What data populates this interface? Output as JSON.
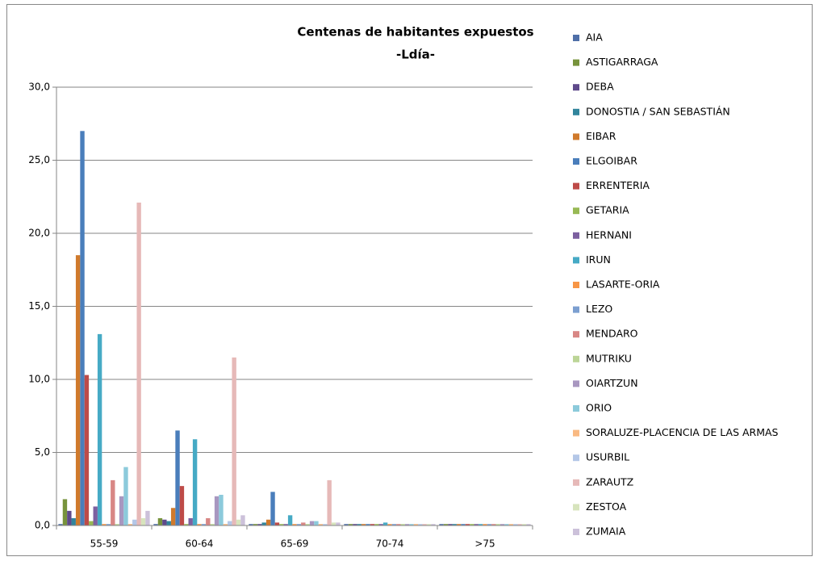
{
  "chart_data": {
    "type": "bar",
    "title": "Centenas de habitantes expuestos",
    "subtitle": "-Ldía-",
    "categories": [
      "55-59",
      "60-64",
      "65-69",
      "70-74",
      ">75"
    ],
    "ylim": [
      0,
      30
    ],
    "yticks": [
      {
        "value": 0,
        "label": "0,0"
      },
      {
        "value": 5,
        "label": "5,0"
      },
      {
        "value": 10,
        "label": "10,0"
      },
      {
        "value": 15,
        "label": "15,0"
      },
      {
        "value": 20,
        "label": "20,0"
      },
      {
        "value": 25,
        "label": "25,0"
      },
      {
        "value": 30,
        "label": "30,0"
      }
    ],
    "grid": true,
    "legend": "right",
    "series": [
      {
        "name": "AIA",
        "color": "#4f6fa8",
        "values": [
          0.1,
          0.1,
          0.1,
          0.1,
          0.1
        ]
      },
      {
        "name": "ASTIGARRAGA",
        "color": "#77933c",
        "values": [
          1.8,
          0.5,
          0.1,
          0.1,
          0.1
        ]
      },
      {
        "name": "DEBA",
        "color": "#5f4a8b",
        "values": [
          1.0,
          0.4,
          0.1,
          0.1,
          0.1
        ]
      },
      {
        "name": "DONOSTIA / SAN SEBASTIÁN",
        "color": "#31859c",
        "values": [
          0.5,
          0.3,
          0.2,
          0.1,
          0.1
        ]
      },
      {
        "name": "EIBAR",
        "color": "#d07a2c",
        "values": [
          18.5,
          1.2,
          0.4,
          0.1,
          0.1
        ]
      },
      {
        "name": "ELGOIBAR",
        "color": "#4a7ebb",
        "values": [
          27.0,
          6.5,
          2.3,
          0.1,
          0.1
        ]
      },
      {
        "name": "ERRENTERIA",
        "color": "#be4b48",
        "values": [
          10.3,
          2.7,
          0.2,
          0.1,
          0.1
        ]
      },
      {
        "name": "GETARIA",
        "color": "#98b954",
        "values": [
          0.3,
          0.1,
          0.1,
          0.1,
          0.1
        ]
      },
      {
        "name": "HERNANI",
        "color": "#7d60a0",
        "values": [
          1.3,
          0.5,
          0.1,
          0.1,
          0.1
        ]
      },
      {
        "name": "IRUN",
        "color": "#46aac5",
        "values": [
          13.1,
          5.9,
          0.7,
          0.2,
          0.1
        ]
      },
      {
        "name": "LASARTE-ORIA",
        "color": "#f79646",
        "values": [
          0.1,
          0.1,
          0.1,
          0.1,
          0.1
        ]
      },
      {
        "name": "LEZO",
        "color": "#7c9fd0",
        "values": [
          0.1,
          0.1,
          0.1,
          0.1,
          0.1
        ]
      },
      {
        "name": "MENDARO",
        "color": "#d88785",
        "values": [
          3.1,
          0.5,
          0.2,
          0.1,
          0.1
        ]
      },
      {
        "name": "MUTRIKU",
        "color": "#bcd597",
        "values": [
          0.1,
          0.1,
          0.1,
          0.1,
          0.1
        ]
      },
      {
        "name": "OIARTZUN",
        "color": "#a897c0",
        "values": [
          2.0,
          2.0,
          0.3,
          0.1,
          0.1
        ]
      },
      {
        "name": "ORIO",
        "color": "#8ccadb",
        "values": [
          4.0,
          2.1,
          0.3,
          0.1,
          0.1
        ]
      },
      {
        "name": "SORALUZE-PLACENCIA DE LAS ARMAS",
        "color": "#f9b982",
        "values": [
          0.1,
          0.1,
          0.1,
          0.1,
          0.1
        ]
      },
      {
        "name": "USURBIL",
        "color": "#b4c7e7",
        "values": [
          0.4,
          0.3,
          0.1,
          0.1,
          0.1
        ]
      },
      {
        "name": "ZARAUTZ",
        "color": "#e6b9b8",
        "values": [
          22.1,
          11.5,
          3.1,
          0.1,
          0.1
        ]
      },
      {
        "name": "ZESTOA",
        "color": "#d7e4bd",
        "values": [
          0.5,
          0.4,
          0.2,
          0.1,
          0.1
        ]
      },
      {
        "name": "ZUMAIA",
        "color": "#ccc1da",
        "values": [
          1.0,
          0.7,
          0.2,
          0.1,
          0.1
        ]
      }
    ]
  }
}
